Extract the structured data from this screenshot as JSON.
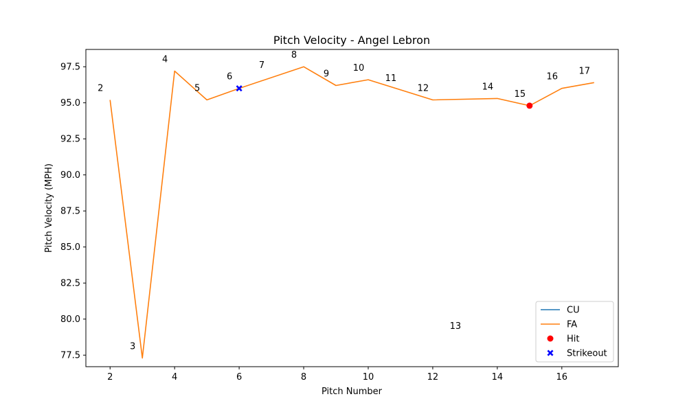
{
  "chart_data": {
    "type": "line",
    "title": "Pitch Velocity - Angel Lebron",
    "xlabel": "Pitch Number",
    "ylabel": "Pitch Velocity (MPH)",
    "xlim": [
      1.25,
      17.75
    ],
    "ylim": [
      76.7,
      98.7
    ],
    "xticks": [
      2,
      4,
      6,
      8,
      10,
      12,
      14,
      16
    ],
    "yticks": [
      77.5,
      80.0,
      82.5,
      85.0,
      87.5,
      90.0,
      92.5,
      95.0,
      97.5
    ],
    "series": [
      {
        "name": "CU",
        "color": "#1f77b4",
        "x": [],
        "y": []
      },
      {
        "name": "FA",
        "color": "#ff7f0e",
        "x": [
          2,
          3,
          4,
          5,
          6,
          8,
          9,
          10,
          12,
          14,
          15,
          16,
          17
        ],
        "y": [
          95.2,
          77.3,
          97.2,
          95.2,
          96.0,
          97.5,
          96.2,
          96.6,
          95.2,
          95.3,
          94.8,
          96.0,
          96.4
        ]
      }
    ],
    "markers": [
      {
        "name": "Hit",
        "shape": "circle",
        "color": "#ff0000",
        "x": 15,
        "y": 94.8
      },
      {
        "name": "Strikeout",
        "shape": "x",
        "color": "#0000ff",
        "x": 6,
        "y": 96.0
      }
    ],
    "point_labels": [
      {
        "text": "2",
        "x": 2,
        "y": 95.2
      },
      {
        "text": "3",
        "x": 3,
        "y": 77.3
      },
      {
        "text": "4",
        "x": 4,
        "y": 97.2
      },
      {
        "text": "5",
        "x": 5,
        "y": 95.2
      },
      {
        "text": "6",
        "x": 6,
        "y": 96.0
      },
      {
        "text": "7",
        "x": 7,
        "y": 96.8
      },
      {
        "text": "8",
        "x": 8,
        "y": 97.5
      },
      {
        "text": "9",
        "x": 9,
        "y": 96.2
      },
      {
        "text": "10",
        "x": 10,
        "y": 96.6
      },
      {
        "text": "11",
        "x": 11,
        "y": 95.9
      },
      {
        "text": "12",
        "x": 12,
        "y": 95.2
      },
      {
        "text": "13",
        "x": 13,
        "y": 78.7
      },
      {
        "text": "14",
        "x": 14,
        "y": 95.3
      },
      {
        "text": "15",
        "x": 15,
        "y": 94.8
      },
      {
        "text": "16",
        "x": 16,
        "y": 96.0
      },
      {
        "text": "17",
        "x": 17,
        "y": 96.4
      }
    ],
    "legend": {
      "position": "bottom-right",
      "entries": [
        {
          "label": "CU",
          "kind": "line",
          "color": "#1f77b4"
        },
        {
          "label": "FA",
          "kind": "line",
          "color": "#ff7f0e"
        },
        {
          "label": "Hit",
          "kind": "circle",
          "color": "#ff0000"
        },
        {
          "label": "Strikeout",
          "kind": "x",
          "color": "#0000ff"
        }
      ]
    },
    "grid": false
  }
}
